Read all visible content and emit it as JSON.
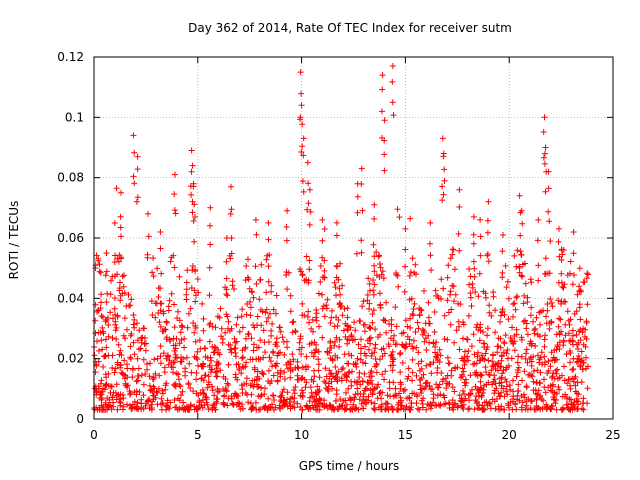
{
  "chart_data": {
    "type": "scatter",
    "title": "Day 362 of 2014, Rate Of TEC Index for receiver sutm",
    "xlabel": "GPS time / hours",
    "ylabel": "ROTI / TECUs",
    "xlim": [
      0,
      25
    ],
    "ylim": [
      0,
      0.12
    ],
    "xticks": [
      0,
      5,
      10,
      15,
      20,
      25
    ],
    "yticks": [
      0,
      0.02,
      0.04,
      0.06,
      0.08,
      0.1,
      0.12
    ],
    "grid": true,
    "marker": "+",
    "color": "#ff0000",
    "data_x_range": [
      0,
      23.8
    ],
    "peak_series": {
      "name": "ROTI",
      "x": [
        0.6,
        1.0,
        1.3,
        1.9,
        2.1,
        2.6,
        3.2,
        3.9,
        4.7,
        4.75,
        4.8,
        5.6,
        6.4,
        6.6,
        7.8,
        8.4,
        9.3,
        9.95,
        10.0,
        10.1,
        10.3,
        10.4,
        11.0,
        11.7,
        12.7,
        12.9,
        13.5,
        13.9,
        14.0,
        14.4,
        15.0,
        16.2,
        16.8,
        16.85,
        17.6,
        18.3,
        18.6,
        19.0,
        19.7,
        20.5,
        20.6,
        21.4,
        21.7,
        21.75,
        21.9,
        22.4,
        23.1,
        23.4
      ],
      "y": [
        0.055,
        0.052,
        0.075,
        0.094,
        0.087,
        0.068,
        0.062,
        0.081,
        0.089,
        0.084,
        0.078,
        0.07,
        0.06,
        0.077,
        0.066,
        0.065,
        0.069,
        0.115,
        0.104,
        0.093,
        0.085,
        0.076,
        0.066,
        0.065,
        0.078,
        0.083,
        0.071,
        0.114,
        0.099,
        0.117,
        0.063,
        0.065,
        0.093,
        0.088,
        0.076,
        0.067,
        0.066,
        0.072,
        0.061,
        0.074,
        0.069,
        0.066,
        0.1,
        0.09,
        0.082,
        0.063,
        0.062,
        0.05
      ]
    }
  }
}
